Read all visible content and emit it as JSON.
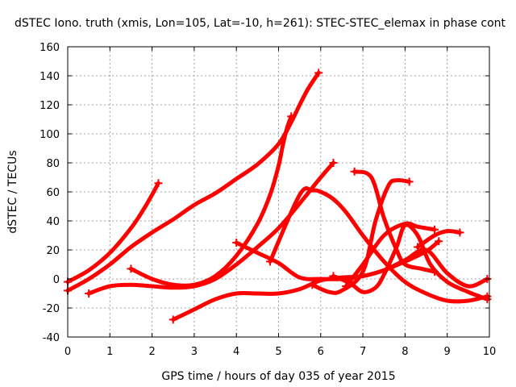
{
  "chart_data": {
    "type": "line",
    "title": "dSTEC Iono. truth (xmis, Lon=105, Lat=-10, h=261): STEC-STEC_elemax in phase cont",
    "xlabel": "GPS time / hours of day 035 of year 2015",
    "ylabel": "dSTEC  / TECUs",
    "xlim": [
      0,
      10
    ],
    "ylim": [
      -40,
      160
    ],
    "xticks": [
      "0",
      "1",
      "2",
      "3",
      "4",
      "5",
      "6",
      "7",
      "8",
      "9",
      "10"
    ],
    "yticks": [
      "-40",
      "-20",
      "0",
      "20",
      "40",
      "60",
      "80",
      "100",
      "120",
      "140",
      "160"
    ],
    "grid": true,
    "color": "#ff0000",
    "series": [
      {
        "x": [
          0,
          0.5,
          1.0,
          1.5,
          1.8,
          2.0,
          2.15
        ],
        "y": [
          -2,
          6,
          18,
          35,
          48,
          58,
          66
        ]
      },
      {
        "x": [
          0,
          0.5,
          1.0,
          1.5,
          2.0,
          2.5,
          3.0,
          3.5,
          4.0,
          4.5,
          5.0,
          5.3,
          5.5,
          5.7,
          5.95
        ],
        "y": [
          -8,
          0,
          10,
          22,
          32,
          41,
          51,
          59,
          69,
          79,
          93,
          108,
          120,
          131,
          142
        ]
      },
      {
        "x": [
          1.5,
          2.0,
          2.5,
          3.0,
          3.5,
          4.0,
          4.5,
          4.8,
          5.0,
          5.1,
          5.2,
          5.3
        ],
        "y": [
          7,
          0,
          -4,
          -4,
          2,
          16,
          38,
          58,
          78,
          92,
          104,
          112
        ]
      },
      {
        "x": [
          0.5,
          1.0,
          1.5,
          2.0,
          2.5,
          3.0,
          3.5,
          4.0,
          4.5,
          5.0,
          5.5,
          6.0,
          6.3
        ],
        "y": [
          -10,
          -5,
          -4,
          -5,
          -6,
          -5,
          0,
          10,
          22,
          35,
          52,
          70,
          80
        ]
      },
      {
        "x": [
          2.5,
          3.0,
          3.5,
          4.0,
          4.5,
          5.0,
          5.5,
          6.0,
          6.5,
          7.0,
          7.5,
          8.0,
          8.5,
          8.8
        ],
        "y": [
          -28,
          -21,
          -14,
          -10,
          -10,
          -10,
          -7,
          -1,
          1,
          2,
          6,
          12,
          19,
          26
        ]
      },
      {
        "x": [
          4.0,
          4.5,
          5.0,
          5.5,
          6.0,
          6.5,
          7.0,
          7.5,
          8.0,
          8.5,
          9.0,
          9.5,
          9.95
        ],
        "y": [
          25,
          18,
          11,
          1,
          0,
          0,
          2,
          6,
          13,
          20,
          4,
          -5,
          0
        ]
      },
      {
        "x": [
          4.8,
          5.5,
          5.8,
          6.0,
          6.3,
          6.6,
          7.0,
          7.5,
          8.0,
          8.5,
          9.0,
          9.5,
          9.95
        ],
        "y": [
          12,
          58,
          61,
          60,
          55,
          46,
          30,
          12,
          -2,
          -10,
          -15,
          -15,
          -12
        ]
      },
      {
        "x": [
          6.3,
          6.7,
          7.0,
          7.3,
          7.5,
          7.8,
          8.0,
          8.3,
          8.6,
          9.0,
          9.5,
          9.95
        ],
        "y": [
          2,
          -3,
          -9,
          -6,
          3,
          22,
          37,
          30,
          10,
          -2,
          -9,
          -14
        ]
      },
      {
        "x": [
          5.8,
          6.2,
          6.5,
          7.0,
          7.3,
          7.6,
          7.8,
          8.1
        ],
        "y": [
          -4,
          -9,
          -8,
          5,
          40,
          64,
          68,
          67
        ]
      },
      {
        "x": [
          6.8,
          7.2,
          7.5,
          7.8,
          8.0,
          8.4,
          8.7
        ],
        "y": [
          74,
          70,
          42,
          20,
          10,
          7,
          5
        ]
      },
      {
        "x": [
          6.6,
          7.0,
          7.5,
          8.0,
          8.3,
          8.7
        ],
        "y": [
          -5,
          10,
          30,
          38,
          36,
          34
        ]
      },
      {
        "x": [
          8.3,
          8.7,
          9.0,
          9.3
        ],
        "y": [
          22,
          30,
          33,
          32
        ]
      }
    ]
  }
}
